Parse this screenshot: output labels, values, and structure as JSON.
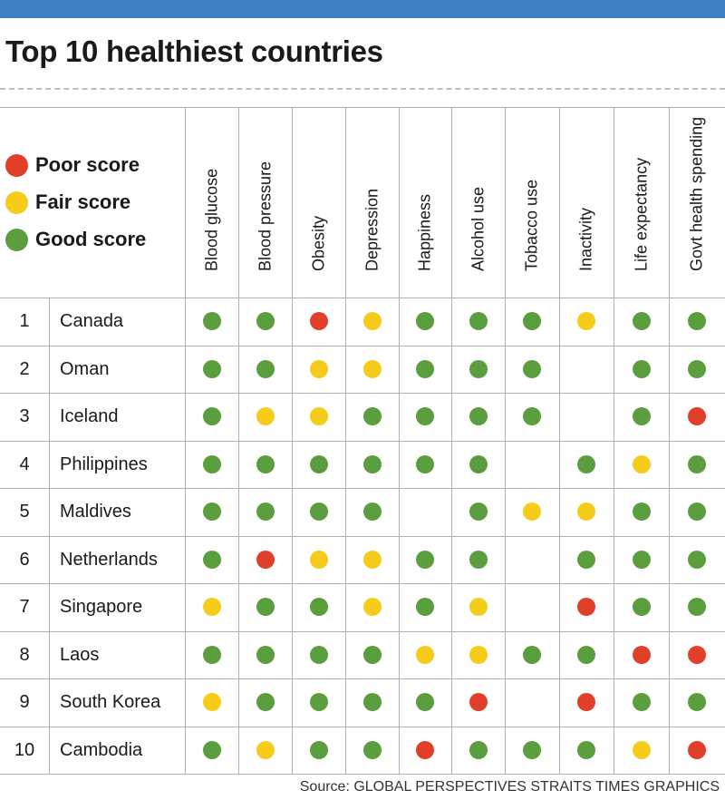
{
  "title": "Top 10 healthiest countries",
  "source": "Source: GLOBAL PERSPECTIVES   STRAITS TIMES GRAPHICS",
  "colors": {
    "poor": "#e0402a",
    "fair": "#f6cc1b",
    "good": "#5a9e3e",
    "accent": "#3d7ec4"
  },
  "legend": [
    {
      "key": "poor",
      "label": "Poor score"
    },
    {
      "key": "fair",
      "label": "Fair score"
    },
    {
      "key": "good",
      "label": "Good score"
    }
  ],
  "chart_data": {
    "type": "table",
    "title": "Top 10 healthiest countries",
    "columns": [
      "Blood glucose",
      "Blood pressure",
      "Obesity",
      "Depression",
      "Happiness",
      "Alcohol use",
      "Tobacco use",
      "Inactivity",
      "Life expectancy",
      "Govt health spending"
    ],
    "rows": [
      {
        "rank": "1",
        "country": "Canada",
        "scores": [
          "good",
          "good",
          "poor",
          "fair",
          "good",
          "good",
          "good",
          "fair",
          "good",
          "good"
        ]
      },
      {
        "rank": "2",
        "country": "Oman",
        "scores": [
          "good",
          "good",
          "fair",
          "fair",
          "good",
          "good",
          "good",
          "",
          "good",
          "good"
        ]
      },
      {
        "rank": "3",
        "country": "Iceland",
        "scores": [
          "good",
          "fair",
          "fair",
          "good",
          "good",
          "good",
          "good",
          "",
          "good",
          "poor"
        ]
      },
      {
        "rank": "4",
        "country": "Philippines",
        "scores": [
          "good",
          "good",
          "good",
          "good",
          "good",
          "good",
          "",
          "good",
          "fair",
          "good"
        ]
      },
      {
        "rank": "5",
        "country": "Maldives",
        "scores": [
          "good",
          "good",
          "good",
          "good",
          "",
          "good",
          "fair",
          "fair",
          "good",
          "good"
        ]
      },
      {
        "rank": "6",
        "country": "Netherlands",
        "scores": [
          "good",
          "poor",
          "fair",
          "fair",
          "good",
          "good",
          "",
          "good",
          "good",
          "good"
        ]
      },
      {
        "rank": "7",
        "country": "Singapore",
        "scores": [
          "fair",
          "good",
          "good",
          "fair",
          "good",
          "fair",
          "",
          "poor",
          "good",
          "good"
        ]
      },
      {
        "rank": "8",
        "country": "Laos",
        "scores": [
          "good",
          "good",
          "good",
          "good",
          "fair",
          "fair",
          "good",
          "good",
          "poor",
          "poor"
        ]
      },
      {
        "rank": "9",
        "country": "South Korea",
        "scores": [
          "fair",
          "good",
          "good",
          "good",
          "good",
          "poor",
          "",
          "poor",
          "good",
          "good"
        ]
      },
      {
        "rank": "10",
        "country": "Cambodia",
        "scores": [
          "good",
          "fair",
          "good",
          "good",
          "poor",
          "good",
          "good",
          "good",
          "fair",
          "poor"
        ]
      }
    ]
  }
}
